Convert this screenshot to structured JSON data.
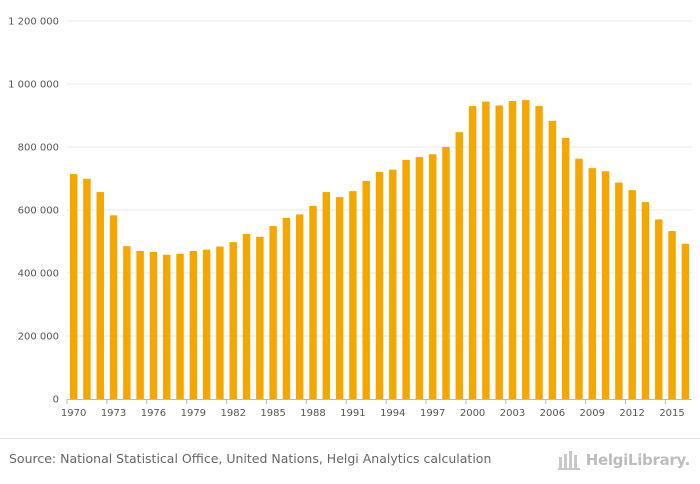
{
  "chart_data": {
    "type": "bar",
    "title": "",
    "xlabel": "",
    "ylabel": "",
    "bar_color": "#F5A700",
    "grid": true,
    "ylim": [
      0,
      1200000
    ],
    "y_ticks": [
      {
        "value": 0,
        "label": "0"
      },
      {
        "value": 200000,
        "label": "200 000"
      },
      {
        "value": 400000,
        "label": "400 000"
      },
      {
        "value": 600000,
        "label": "600 000"
      },
      {
        "value": 800000,
        "label": "800 000"
      },
      {
        "value": 1000000,
        "label": "1 000 000"
      },
      {
        "value": 1200000,
        "label": "1 200 000"
      }
    ],
    "x_tick_labels": [
      "1970",
      "1973",
      "1976",
      "1979",
      "1982",
      "1985",
      "1988",
      "1991",
      "1994",
      "1997",
      "2000",
      "2003",
      "2006",
      "2009",
      "2012",
      "2015"
    ],
    "categories": [
      1970,
      1971,
      1972,
      1973,
      1974,
      1975,
      1976,
      1977,
      1978,
      1979,
      1980,
      1981,
      1982,
      1983,
      1984,
      1985,
      1986,
      1987,
      1988,
      1989,
      1990,
      1991,
      1992,
      1993,
      1994,
      1995,
      1996,
      1997,
      1998,
      1999,
      2000,
      2001,
      2002,
      2003,
      2004,
      2005,
      2006,
      2007,
      2008,
      2009,
      2010,
      2011,
      2012,
      2013,
      2014,
      2015,
      2016
    ],
    "values": [
      714000,
      699000,
      657000,
      583000,
      485000,
      470000,
      467000,
      458000,
      461000,
      470000,
      474000,
      484000,
      498000,
      524000,
      515000,
      549000,
      575000,
      586000,
      613000,
      657000,
      641000,
      660000,
      692000,
      721000,
      728000,
      759000,
      768000,
      777000,
      800000,
      847000,
      930000,
      944000,
      932000,
      946000,
      949000,
      930000,
      883000,
      829000,
      763000,
      733000,
      723000,
      687000,
      663000,
      625000,
      570000,
      533000,
      493000
    ]
  },
  "footer": {
    "source": "Source: National Statistical Office, United Nations, Helgi Analytics calculation",
    "logo_text": "HelgiLibrary."
  }
}
